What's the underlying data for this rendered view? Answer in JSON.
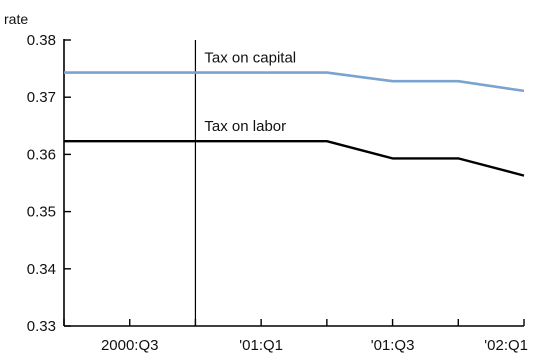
{
  "chart_data": {
    "type": "line",
    "title": "",
    "xlabel": "",
    "ylabel": "rate",
    "ylim": [
      0.33,
      0.38
    ],
    "yticks": [
      "0.38",
      "0.37",
      "0.36",
      "0.35",
      "0.34",
      "0.33"
    ],
    "ytick_values": [
      0.38,
      0.37,
      0.36,
      0.35,
      0.34,
      0.33
    ],
    "categories": [
      "2000:Q2",
      "2000:Q3",
      "2000:Q4",
      "'01:Q1",
      "'01:Q2",
      "'01:Q3",
      "'01:Q4",
      "'02:Q1"
    ],
    "xtick_labels": [
      {
        "category": "2000:Q3",
        "label": "2000:Q3"
      },
      {
        "category": "'01:Q1",
        "label": "'01:Q1"
      },
      {
        "category": "'01:Q3",
        "label": "'01:Q3"
      },
      {
        "category": "'02:Q1",
        "label": "'02:Q1"
      }
    ],
    "vertical_line_at": "2000:Q4",
    "grid": false,
    "series": [
      {
        "name": "Tax on capital",
        "color": "#7ba3cf",
        "values": [
          0.3743,
          0.3743,
          0.3743,
          0.3743,
          0.3743,
          0.3728,
          0.3728,
          0.3711
        ]
      },
      {
        "name": "Tax on labor",
        "color": "#000000",
        "values": [
          0.3623,
          0.3623,
          0.3623,
          0.3623,
          0.3623,
          0.3593,
          0.3593,
          0.3563
        ]
      }
    ],
    "annotations": [
      {
        "text": "Tax on capital",
        "series": "Tax on capital"
      },
      {
        "text": "Tax on labor",
        "series": "Tax on labor"
      }
    ]
  }
}
